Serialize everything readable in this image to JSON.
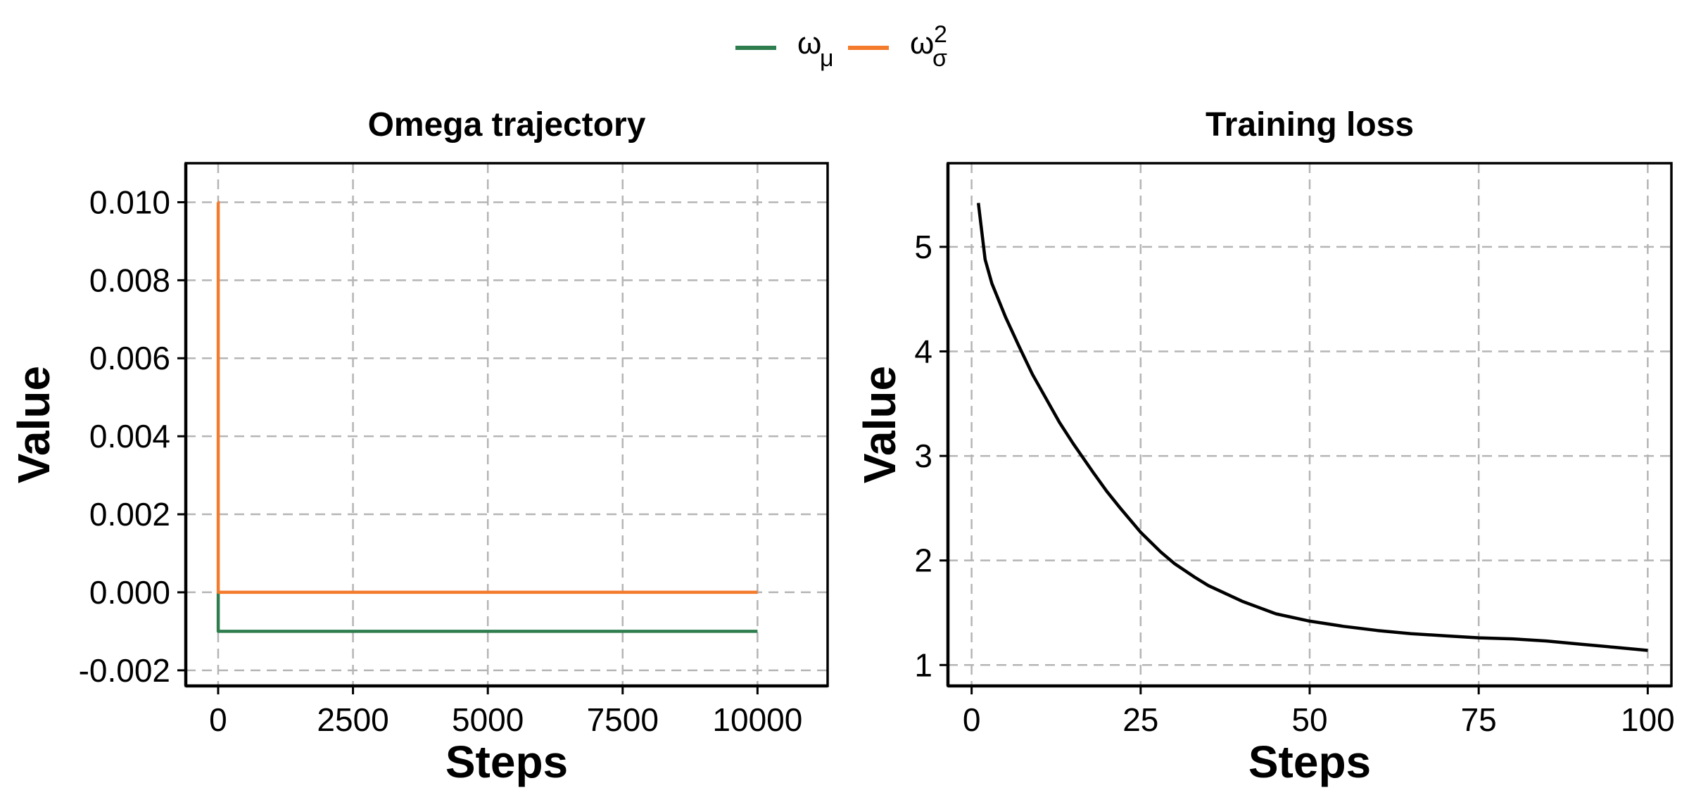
{
  "legend": {
    "items": [
      {
        "base": "ω",
        "sub": "μ",
        "sup": "",
        "color": "#2E7D4F"
      },
      {
        "base": "ω",
        "sub": "σ",
        "sup": "2",
        "color": "#F47A2C"
      }
    ]
  },
  "chart_data": [
    {
      "type": "line",
      "title": "Omega trajectory",
      "xlabel": "Steps",
      "ylabel": "Value",
      "xlim": [
        -600,
        11300
      ],
      "ylim": [
        -0.0024,
        0.011
      ],
      "xticks": [
        0,
        2500,
        5000,
        7500,
        10000
      ],
      "xtick_labels": [
        "0",
        "2500",
        "5000",
        "7500",
        "10000"
      ],
      "yticks": [
        -0.002,
        0.0,
        0.002,
        0.004,
        0.006,
        0.008,
        0.01
      ],
      "ytick_labels": [
        "-0.002",
        "0.000",
        "0.002",
        "0.004",
        "0.006",
        "0.008",
        "0.010"
      ],
      "grid": true,
      "series": [
        {
          "name": "ω_μ",
          "color": "#2E7D4F",
          "x": [
            0,
            1,
            2,
            10000
          ],
          "y": [
            0.0,
            0.0,
            -0.001,
            -0.001
          ]
        },
        {
          "name": "ω_σ^2",
          "color": "#F47A2C",
          "x": [
            0,
            1,
            2,
            10000
          ],
          "y": [
            0.01,
            0.01,
            0.0,
            0.0
          ]
        }
      ]
    },
    {
      "type": "line",
      "title": "Training loss",
      "xlabel": "Steps",
      "ylabel": "Value",
      "xlim": [
        -3.5,
        103.5
      ],
      "ylim": [
        0.8,
        5.8
      ],
      "xticks": [
        0,
        25,
        50,
        75,
        100
      ],
      "xtick_labels": [
        "0",
        "25",
        "50",
        "75",
        "100"
      ],
      "yticks": [
        1,
        2,
        3,
        4,
        5
      ],
      "ytick_labels": [
        "1",
        "2",
        "3",
        "4",
        "5"
      ],
      "grid": true,
      "series": [
        {
          "color": "#000000",
          "x": [
            1,
            2,
            3,
            5,
            7,
            9,
            11,
            13,
            15,
            18,
            20,
            22,
            25,
            28,
            30,
            33,
            35,
            40,
            45,
            50,
            55,
            60,
            65,
            70,
            75,
            80,
            85,
            90,
            95,
            100
          ],
          "y": [
            5.42,
            4.88,
            4.65,
            4.33,
            4.05,
            3.78,
            3.55,
            3.32,
            3.12,
            2.84,
            2.66,
            2.5,
            2.27,
            2.08,
            1.97,
            1.84,
            1.76,
            1.61,
            1.49,
            1.42,
            1.37,
            1.33,
            1.3,
            1.28,
            1.26,
            1.25,
            1.23,
            1.2,
            1.17,
            1.14
          ]
        }
      ]
    }
  ]
}
